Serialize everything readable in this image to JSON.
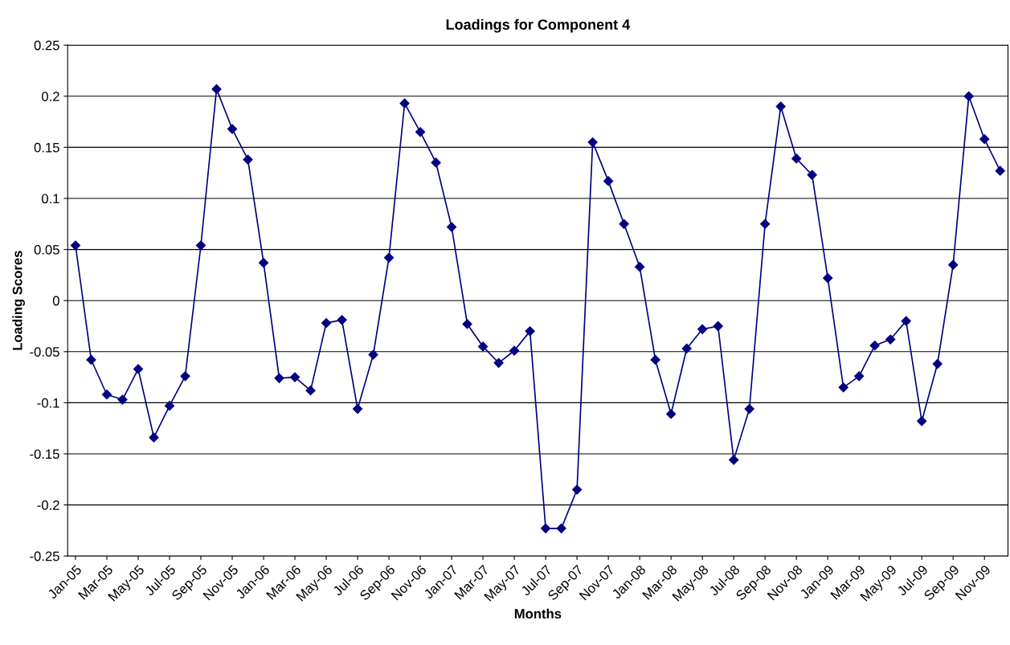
{
  "chart_data": {
    "type": "line",
    "title": "Loadings for Component 4",
    "xlabel": "Months",
    "ylabel": "Loading Scores",
    "categories": [
      "Jan-05",
      null,
      "Mar-05",
      null,
      "May-05",
      null,
      "Jul-05",
      null,
      "Sep-05",
      null,
      "Nov-05",
      null,
      "Jan-06",
      null,
      "Mar-06",
      null,
      "May-06",
      null,
      "Jul-06",
      null,
      "Sep-06",
      null,
      "Nov-06",
      null,
      "Jan-07",
      null,
      "Mar-07",
      null,
      "May-07",
      null,
      "Jul-07",
      null,
      "Sep-07",
      null,
      "Nov-07",
      null,
      "Jan-08",
      null,
      "Mar-08",
      null,
      "May-08",
      null,
      "Jul-08",
      null,
      "Sep-08",
      null,
      "Nov-08",
      null,
      "Jan-09",
      null,
      "Mar-09",
      null,
      "May-09",
      null,
      "Jul-09",
      null,
      "Sep-09",
      null,
      "Nov-09",
      null
    ],
    "series": [
      {
        "color": "#000080",
        "values": [
          0.054,
          -0.058,
          -0.092,
          -0.097,
          -0.067,
          -0.134,
          -0.103,
          -0.074,
          0.054,
          0.207,
          0.168,
          0.138,
          0.037,
          -0.076,
          -0.075,
          -0.088,
          -0.022,
          -0.019,
          -0.106,
          -0.053,
          0.042,
          0.193,
          0.165,
          0.135,
          0.072,
          -0.023,
          -0.045,
          -0.061,
          -0.049,
          -0.03,
          -0.223,
          -0.223,
          -0.185,
          0.155,
          0.117,
          0.075,
          0.033,
          -0.058,
          -0.111,
          -0.047,
          -0.028,
          -0.025,
          -0.156,
          -0.106,
          0.075,
          0.19,
          0.139,
          0.123,
          0.022,
          -0.085,
          -0.074,
          -0.044,
          -0.038,
          -0.02,
          -0.118,
          -0.062,
          0.035,
          0.2,
          0.158,
          0.127
        ]
      }
    ],
    "ylim": [
      -0.25,
      0.25
    ],
    "yticks": [
      -0.25,
      -0.2,
      -0.15,
      -0.1,
      -0.05,
      0,
      0.05,
      0.1,
      0.15,
      0.2,
      0.25
    ],
    "grid": "y",
    "marker": "diamond",
    "line_style": "solid"
  }
}
